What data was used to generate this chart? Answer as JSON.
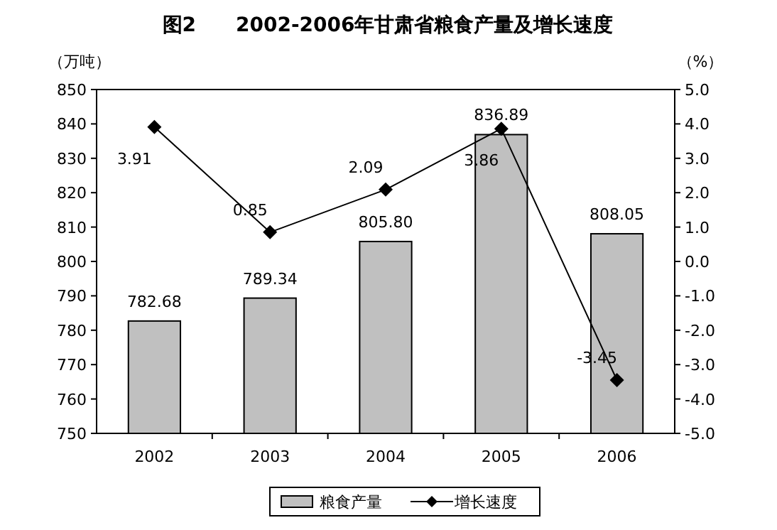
{
  "chart_data": {
    "type": "bar",
    "title": "图2　　2002-2006年甘肃省粮食产量及增长速度",
    "ylabel": "（万吨）",
    "y2label": "（%）",
    "categories": [
      "2002",
      "2003",
      "2004",
      "2005",
      "2006"
    ],
    "series": [
      {
        "name": "粮食产量",
        "color": "#c0c0c0",
        "values": [
          782.68,
          789.34,
          805.8,
          836.89,
          808.05
        ],
        "value_labels": [
          "782.68",
          "789.34",
          "805.80",
          "836.89",
          "808.05"
        ]
      },
      {
        "name": "增长速度",
        "type": "line",
        "axis": "y2",
        "color": "#000000",
        "marker": "diamond",
        "values": [
          3.91,
          0.85,
          2.09,
          3.86,
          -3.45
        ],
        "value_labels": [
          "3.91",
          "0.85",
          "2.09",
          "3.86",
          "-3.45"
        ]
      }
    ],
    "ylim": [
      750,
      850
    ],
    "yticks": [
      750,
      760,
      770,
      780,
      790,
      800,
      810,
      820,
      830,
      840,
      850
    ],
    "y2lim": [
      -5,
      5
    ],
    "y2ticks": [
      {
        "value": -5,
        "label": "-5.0"
      },
      {
        "value": -4,
        "label": "-4.0"
      },
      {
        "value": -3,
        "label": "-3.0"
      },
      {
        "value": -2,
        "label": "-2.0"
      },
      {
        "value": -1,
        "label": "-1.0"
      },
      {
        "value": 0,
        "label": "0.0"
      },
      {
        "value": 1,
        "label": "1.0"
      },
      {
        "value": 2,
        "label": "2.0"
      },
      {
        "value": 3,
        "label": "3.0"
      },
      {
        "value": 4,
        "label": "4.0"
      },
      {
        "value": 5,
        "label": "5.0"
      }
    ],
    "legend": "bottom"
  }
}
